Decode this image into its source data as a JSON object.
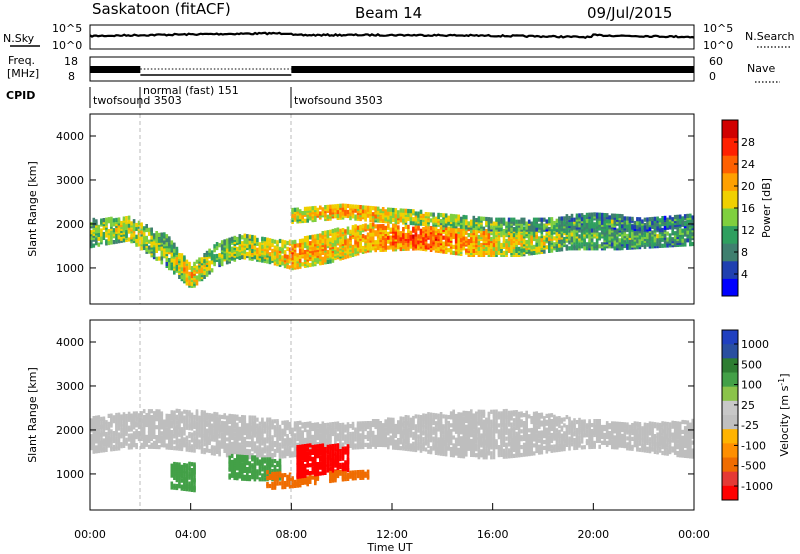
{
  "header": {
    "station": "Saskatoon (fitACF)",
    "beam": "Beam 14",
    "date": "09/Jul/2015"
  },
  "noise_panel": {
    "left_label": "N.Sky",
    "right_label": "N.Search",
    "left_ticks": [
      "10^5",
      "10^0"
    ],
    "right_ticks": [
      "10^5",
      "10^0"
    ]
  },
  "freq_panel": {
    "left_label_line1": "Freq.",
    "left_label_line2": "[MHz]",
    "right_label": "Nave",
    "left_ticks": [
      "18",
      "8"
    ],
    "right_ticks": [
      "60",
      "0"
    ]
  },
  "cpid": {
    "label": "CPID",
    "segments": [
      {
        "start_h": 0,
        "end_h": 2,
        "name": "twofsound 3503"
      },
      {
        "start_h": 2,
        "end_h": 8,
        "name": "normal (fast) 151"
      },
      {
        "start_h": 8,
        "end_h": 24,
        "name": "twofsound 3503"
      }
    ]
  },
  "colors": {
    "power_scale": [
      "#0000ff",
      "#2040b0",
      "#3f7f6f",
      "#2f9f5f",
      "#7fcf3f",
      "#f0d000",
      "#ffa000",
      "#ff6000",
      "#ff2000",
      "#d00000"
    ],
    "velocity_scale": [
      "#2040c0",
      "#2a4fa0",
      "#2e7d32",
      "#43a047",
      "#8bc34a",
      "#c8c8c8",
      "#c0c0c0",
      "#ffb300",
      "#ff8f00",
      "#ef6c00",
      "#e53935",
      "#ff0000"
    ],
    "ground_scatter": "#bebebe"
  },
  "chart_data": [
    {
      "type": "heatmap",
      "name": "Power",
      "xlabel": "",
      "ylabel": "Slant Range [km]",
      "xlim": [
        0,
        24
      ],
      "ylim": [
        180,
        4500
      ],
      "yticks": [
        1000,
        2000,
        3000,
        4000
      ],
      "colorbar": {
        "label": "Power [dB]",
        "ticks": [
          4,
          8,
          12,
          16,
          20,
          24,
          28
        ],
        "range": [
          0,
          32
        ]
      },
      "echo_bands": [
        {
          "t": [
            0,
            1.5,
            3,
            4,
            5,
            6,
            7,
            8,
            9.5,
            11,
            13,
            15,
            17,
            19,
            21,
            24
          ],
          "center_km": [
            1800,
            1900,
            1400,
            800,
            1300,
            1500,
            1400,
            1300,
            1500,
            1700,
            1700,
            1600,
            1600,
            1700,
            1700,
            1800
          ],
          "width_km": [
            600,
            500,
            700,
            500,
            500,
            500,
            500,
            600,
            700,
            600,
            500,
            600,
            600,
            500,
            500,
            500
          ],
          "power_db": [
            14,
            18,
            14,
            20,
            14,
            16,
            18,
            22,
            20,
            22,
            26,
            22,
            18,
            14,
            12,
            12
          ]
        },
        {
          "t": [
            8,
            10,
            12,
            14,
            16,
            18,
            20,
            22,
            24
          ],
          "center_km": [
            2200,
            2300,
            2200,
            2100,
            2000,
            2000,
            2100,
            2000,
            2100
          ],
          "width_km": [
            300,
            300,
            300,
            250,
            250,
            250,
            300,
            250,
            250
          ],
          "power_db": [
            18,
            22,
            20,
            16,
            14,
            12,
            12,
            10,
            10
          ]
        }
      ]
    },
    {
      "type": "heatmap",
      "name": "Velocity",
      "xlabel": "Time UT",
      "ylabel": "Slant Range [km]",
      "xlim": [
        0,
        24
      ],
      "ylim": [
        180,
        4500
      ],
      "yticks": [
        1000,
        2000,
        3000,
        4000
      ],
      "xticks": [
        "00:00",
        "04:00",
        "08:00",
        "12:00",
        "16:00",
        "20:00",
        "00:00"
      ],
      "colorbar": {
        "label": "Velocity [m s^-1]",
        "ticks": [
          1000,
          500,
          100,
          25,
          -25,
          -100,
          -500,
          -1000
        ]
      },
      "regions": [
        {
          "t_start": 0,
          "t_end": 24,
          "range_km": [
            1500,
            2300
          ],
          "velocity": "ground scatter"
        },
        {
          "t_start": 3.2,
          "t_end": 4.2,
          "range_km": [
            600,
            1100
          ],
          "velocity": 100
        },
        {
          "t_start": 5.5,
          "t_end": 7.5,
          "range_km": [
            1000,
            1400
          ],
          "velocity": 100
        },
        {
          "t_start": 7,
          "t_end": 9,
          "range_km": [
            800,
            1100
          ],
          "velocity": -100
        },
        {
          "t_start": 8.2,
          "t_end": 10.2,
          "range_km": [
            1000,
            1800
          ],
          "velocity": -500
        },
        {
          "t_start": 9.5,
          "t_end": 11,
          "range_km": [
            800,
            1200
          ],
          "velocity": -100
        }
      ]
    }
  ]
}
